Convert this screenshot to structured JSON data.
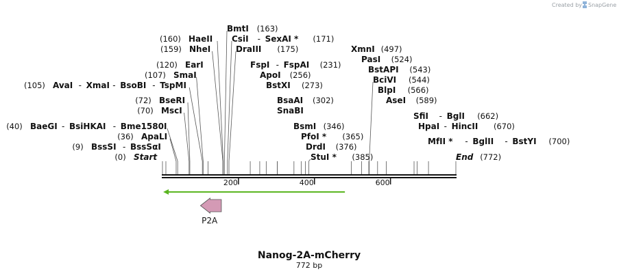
{
  "credit": {
    "text": "Created by",
    "brand": "SnapGene"
  },
  "sequence": {
    "name": "Nanog-2A-mCherry",
    "length_label": "772 bp",
    "length": 772,
    "ruler_ticks": [
      "200",
      "400",
      "600"
    ]
  },
  "features": [
    {
      "label": "P2A",
      "direction": "reverse",
      "color": "#d49ab5",
      "start": 100,
      "end": 155
    }
  ],
  "orf": {
    "start": 2,
    "end": 480,
    "color": "#5ab520",
    "direction": "reverse"
  },
  "sites": [
    {
      "name": "Start",
      "pos": "(0)",
      "cut": 0,
      "side": "left",
      "italic": true
    },
    {
      "name": "BssSI",
      "extra": [
        "BssSαI"
      ],
      "pos": "(9)",
      "cut": 9,
      "side": "left"
    },
    {
      "name": "ApaLI",
      "pos": "(36)",
      "cut": 36,
      "side": "left"
    },
    {
      "name": "BaeGI",
      "extra": [
        "BsiHKAI",
        "Bme1580I"
      ],
      "pos": "(40)",
      "cut": 40,
      "side": "left"
    },
    {
      "name": "MscI",
      "pos": "(70)",
      "cut": 70,
      "side": "left"
    },
    {
      "name": "BseRI",
      "pos": "(72)",
      "cut": 72,
      "side": "left"
    },
    {
      "name": "AvaI",
      "extra": [
        "XmaI",
        "BsoBI",
        "TspMI"
      ],
      "pos": "(105)",
      "cut": 105,
      "side": "left"
    },
    {
      "name": "SmaI",
      "pos": "(107)",
      "cut": 107,
      "side": "left"
    },
    {
      "name": "EarI",
      "pos": "(120)",
      "cut": 120,
      "side": "left"
    },
    {
      "name": "NheI",
      "pos": "(159)",
      "cut": 159,
      "side": "left"
    },
    {
      "name": "HaeII",
      "pos": "(160)",
      "cut": 160,
      "side": "left"
    },
    {
      "name": "BmtI",
      "pos": "(163)",
      "cut": 163,
      "side": "right"
    },
    {
      "name": "CsiI",
      "extra": [
        "SexAI *"
      ],
      "pos": "(171)",
      "cut": 171,
      "side": "right"
    },
    {
      "name": "DraIII",
      "pos": "(175)",
      "cut": 175,
      "side": "right"
    },
    {
      "name": "FspI",
      "extra": [
        "FspAI"
      ],
      "pos": "(231)",
      "cut": 231,
      "side": "right"
    },
    {
      "name": "ApoI",
      "pos": "(256)",
      "cut": 256,
      "side": "right"
    },
    {
      "name": "BstXI",
      "pos": "(273)",
      "cut": 273,
      "side": "right"
    },
    {
      "name": "BsaAI",
      "pos": "(302)",
      "cut": 302,
      "side": "right"
    },
    {
      "name": "SnaBI",
      "pos": "",
      "cut": 302,
      "side": "right"
    },
    {
      "name": "BsmI",
      "pos": "(346)",
      "cut": 346,
      "side": "right"
    },
    {
      "name": "PfoI *",
      "pos": "(365)",
      "cut": 365,
      "side": "right"
    },
    {
      "name": "DrdI",
      "pos": "(376)",
      "cut": 376,
      "side": "right"
    },
    {
      "name": "StuI *",
      "pos": "(385)",
      "cut": 385,
      "side": "right"
    },
    {
      "name": "XmnI",
      "pos": "(497)",
      "cut": 497,
      "side": "right"
    },
    {
      "name": "PasI",
      "pos": "(524)",
      "cut": 524,
      "side": "right"
    },
    {
      "name": "BstAPI",
      "pos": "(543)",
      "cut": 543,
      "side": "right"
    },
    {
      "name": "BciVI",
      "pos": "(544)",
      "cut": 544,
      "side": "right"
    },
    {
      "name": "BlpI",
      "pos": "(566)",
      "cut": 566,
      "side": "right"
    },
    {
      "name": "AseI",
      "pos": "(589)",
      "cut": 589,
      "side": "right"
    },
    {
      "name": "SfiI",
      "extra": [
        "BglI"
      ],
      "pos": "(662)",
      "cut": 662,
      "side": "right"
    },
    {
      "name": "HpaI",
      "extra": [
        "HincII"
      ],
      "pos": "(670)",
      "cut": 670,
      "side": "right"
    },
    {
      "name": "MfII *",
      "extra": [
        "BglII",
        "BstYI"
      ],
      "pos": "(700)",
      "cut": 700,
      "side": "right"
    },
    {
      "name": "End",
      "pos": "(772)",
      "cut": 772,
      "side": "right",
      "italic": true
    }
  ]
}
